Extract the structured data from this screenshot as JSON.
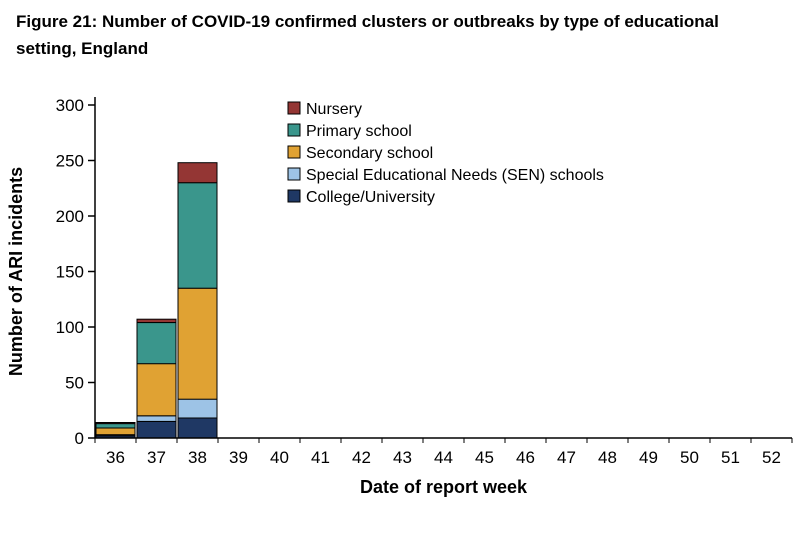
{
  "title": {
    "line1": "Figure 21: Number of COVID-19 confirmed clusters or outbreaks by type of educational",
    "line2": "setting, England"
  },
  "chart_data": {
    "type": "bar",
    "stacked": true,
    "xlabel": "Date of report week",
    "ylabel": "Number of ARI incidents",
    "ylim": [
      0,
      300
    ],
    "ytick_interval": 50,
    "categories": [
      36,
      37,
      38,
      39,
      40,
      41,
      42,
      43,
      44,
      45,
      46,
      47,
      48,
      49,
      50,
      51,
      52
    ],
    "legend_position": "top-inside",
    "grid": false,
    "series": [
      {
        "name": "Nursery",
        "color": "#943634",
        "values": [
          1,
          3,
          18,
          0,
          0,
          0,
          0,
          0,
          0,
          0,
          0,
          0,
          0,
          0,
          0,
          0,
          0
        ]
      },
      {
        "name": "Primary school",
        "color": "#3A968C",
        "values": [
          4,
          37,
          95,
          0,
          0,
          0,
          0,
          0,
          0,
          0,
          0,
          0,
          0,
          0,
          0,
          0,
          0
        ]
      },
      {
        "name": "Secondary school",
        "color": "#E0A233",
        "values": [
          6,
          47,
          100,
          0,
          0,
          0,
          0,
          0,
          0,
          0,
          0,
          0,
          0,
          0,
          0,
          0,
          0
        ]
      },
      {
        "name": "Special Educational Needs (SEN) schools",
        "color": "#9DC3E6",
        "values": [
          1,
          5,
          17,
          0,
          0,
          0,
          0,
          0,
          0,
          0,
          0,
          0,
          0,
          0,
          0,
          0,
          0
        ]
      },
      {
        "name": "College/University",
        "color": "#1F3864",
        "values": [
          2,
          15,
          18,
          0,
          0,
          0,
          0,
          0,
          0,
          0,
          0,
          0,
          0,
          0,
          0,
          0,
          0
        ]
      }
    ],
    "stack_order_note": "bars stacked bottom-to-top in reverse of series list (College/University at bottom, Nursery on top)"
  }
}
